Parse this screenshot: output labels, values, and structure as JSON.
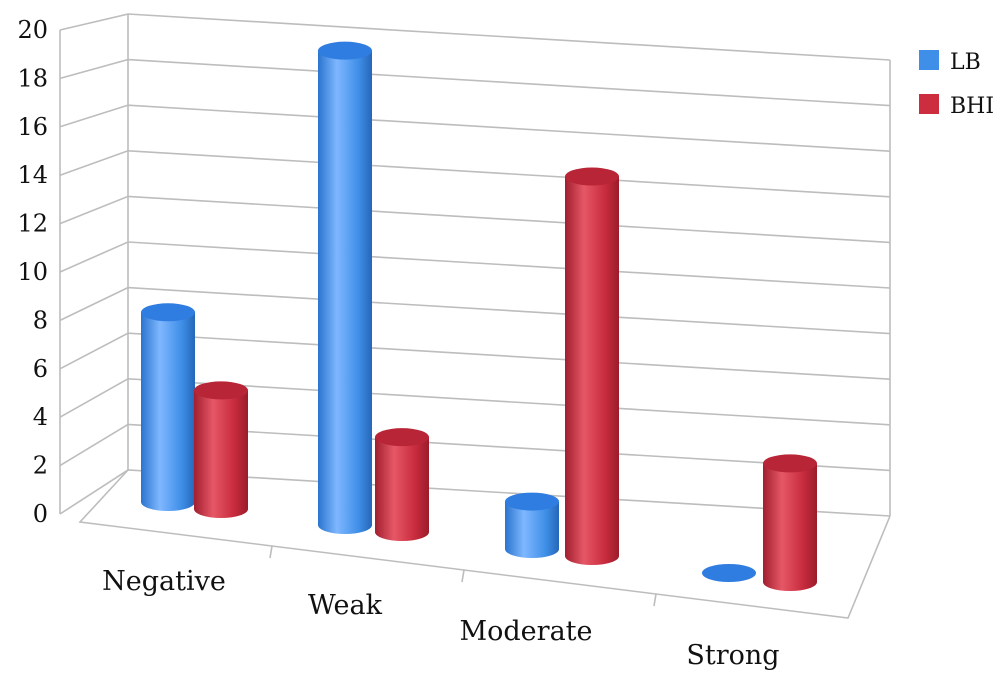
{
  "chart_data": {
    "type": "bar",
    "style": "3d-cylinder",
    "categories": [
      "Negative",
      "Weak",
      "Moderate",
      "Strong"
    ],
    "series": [
      {
        "name": "LB",
        "values": [
          8,
          20,
          2,
          0
        ],
        "color": "#3f8fe8"
      },
      {
        "name": "BHI",
        "values": [
          5,
          4,
          16,
          5
        ],
        "color": "#cc2e40"
      }
    ],
    "y_ticks": [
      "0",
      "2",
      "4",
      "6",
      "8",
      "10",
      "12",
      "14",
      "16",
      "18",
      "20"
    ],
    "ylim": [
      0,
      20
    ],
    "grid": true,
    "legend_position": "top-right"
  }
}
